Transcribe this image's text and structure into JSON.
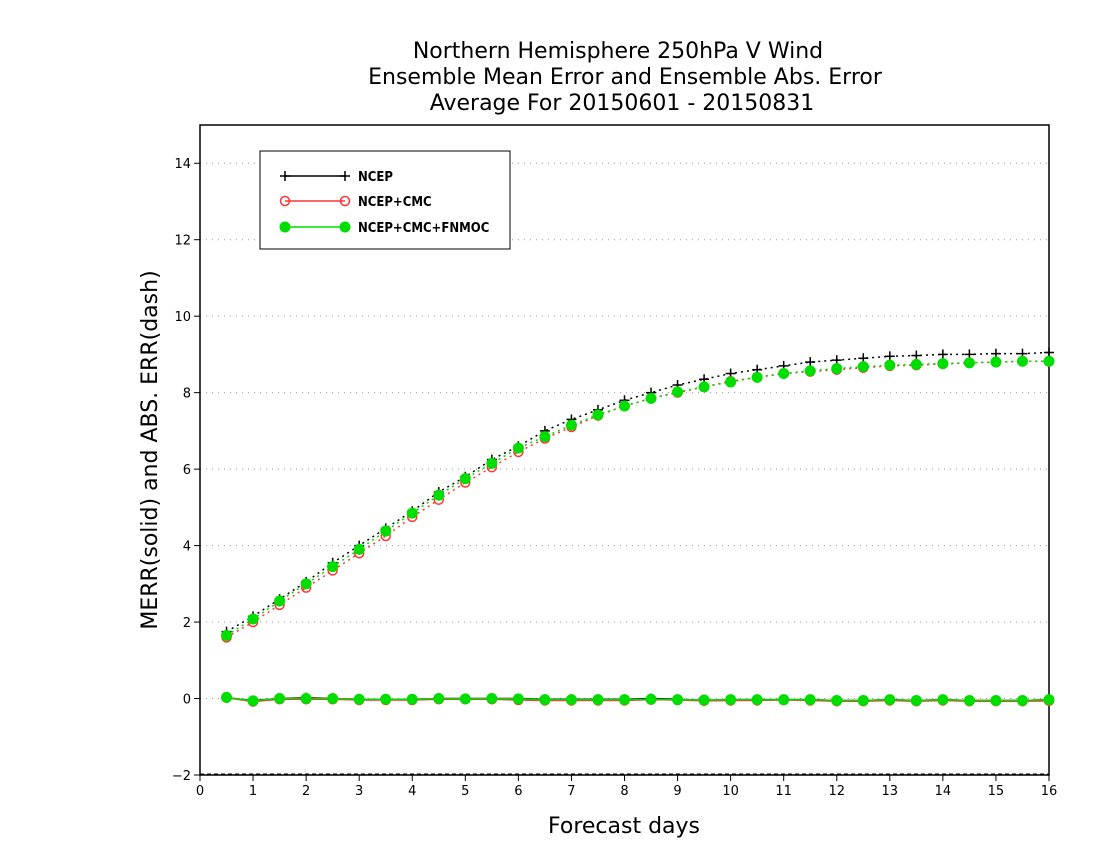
{
  "chart_data": {
    "type": "line",
    "title": [
      "Northern Hemisphere 250hPa V Wind",
      "Ensemble Mean Error and Ensemble Abs. Error",
      "Average For 20150601 - 20150831"
    ],
    "xlabel": "Forecast days",
    "ylabel": "MERR(solid) and ABS. ERR(dash)",
    "xlim": [
      0,
      16
    ],
    "ylim": [
      -2,
      15
    ],
    "xticks": [
      0,
      1,
      2,
      3,
      4,
      5,
      6,
      7,
      8,
      9,
      10,
      11,
      12,
      13,
      14,
      15,
      16
    ],
    "yticks": [
      -2,
      0,
      2,
      4,
      6,
      8,
      10,
      12,
      14
    ],
    "grid": "horizontal dotted",
    "legend_position": "top-left",
    "x": [
      0.5,
      1,
      1.5,
      2,
      2.5,
      3,
      3.5,
      4,
      4.5,
      5,
      5.5,
      6,
      6.5,
      7,
      7.5,
      8,
      8.5,
      9,
      9.5,
      10,
      10.5,
      11,
      11.5,
      12,
      12.5,
      13,
      13.5,
      14,
      14.5,
      15,
      15.5,
      16
    ],
    "series": [
      {
        "name": "NCEP",
        "color": "#000000",
        "marker": "plus",
        "abs_error": [
          1.75,
          2.15,
          2.6,
          3.05,
          3.55,
          4.0,
          4.45,
          4.9,
          5.4,
          5.8,
          6.25,
          6.6,
          7.0,
          7.3,
          7.55,
          7.8,
          8.0,
          8.2,
          8.35,
          8.5,
          8.6,
          8.7,
          8.8,
          8.85,
          8.9,
          8.95,
          8.97,
          9.0,
          9.0,
          9.02,
          9.02,
          9.05
        ],
        "mean_error": [
          0.02,
          -0.05,
          0.0,
          0.02,
          0.0,
          -0.02,
          -0.02,
          -0.02,
          0.0,
          0.0,
          0.0,
          0.0,
          -0.02,
          -0.02,
          -0.02,
          -0.02,
          0.0,
          -0.02,
          -0.05,
          -0.03,
          -0.03,
          -0.03,
          -0.03,
          -0.05,
          -0.05,
          -0.03,
          -0.05,
          -0.03,
          -0.05,
          -0.05,
          -0.05,
          -0.03
        ]
      },
      {
        "name": "NCEP+CMC",
        "color": "#ff3333",
        "marker": "open-circle",
        "abs_error": [
          1.6,
          2.0,
          2.45,
          2.9,
          3.35,
          3.8,
          4.25,
          4.75,
          5.2,
          5.65,
          6.05,
          6.45,
          6.8,
          7.1,
          7.4,
          7.65,
          7.85,
          8.0,
          8.15,
          8.3,
          8.4,
          8.5,
          8.55,
          8.6,
          8.65,
          8.7,
          8.72,
          8.75,
          8.78,
          8.8,
          8.82,
          8.82
        ],
        "mean_error": [
          0.02,
          -0.08,
          -0.02,
          -0.02,
          -0.02,
          -0.04,
          -0.04,
          -0.04,
          -0.02,
          -0.02,
          -0.02,
          -0.04,
          -0.05,
          -0.05,
          -0.05,
          -0.05,
          -0.03,
          -0.04,
          -0.06,
          -0.05,
          -0.05,
          -0.04,
          -0.05,
          -0.07,
          -0.07,
          -0.05,
          -0.07,
          -0.05,
          -0.07,
          -0.07,
          -0.07,
          -0.06
        ]
      },
      {
        "name": "NCEP+CMC+FNMOC",
        "color": "#00dd00",
        "marker": "filled-circle",
        "abs_error": [
          1.65,
          2.08,
          2.55,
          3.0,
          3.45,
          3.9,
          4.38,
          4.85,
          5.32,
          5.75,
          6.15,
          6.55,
          6.85,
          7.15,
          7.42,
          7.65,
          7.85,
          8.02,
          8.15,
          8.28,
          8.4,
          8.5,
          8.57,
          8.63,
          8.68,
          8.72,
          8.74,
          8.76,
          8.78,
          8.8,
          8.82,
          8.82
        ],
        "mean_error": [
          0.03,
          -0.06,
          0.0,
          0.0,
          0.0,
          -0.02,
          -0.02,
          -0.02,
          0.0,
          -0.01,
          0.0,
          -0.01,
          -0.03,
          -0.03,
          -0.03,
          -0.03,
          -0.02,
          -0.03,
          -0.04,
          -0.03,
          -0.03,
          -0.03,
          -0.03,
          -0.05,
          -0.05,
          -0.03,
          -0.05,
          -0.03,
          -0.05,
          -0.05,
          -0.05,
          -0.03
        ]
      }
    ]
  }
}
